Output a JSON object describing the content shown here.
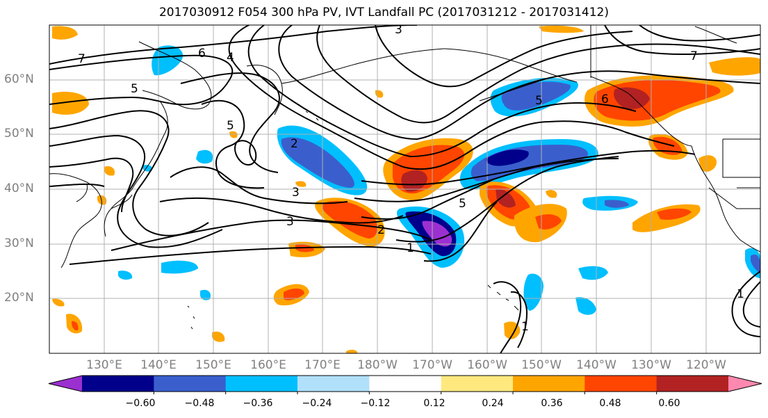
{
  "title": "2017030912 F054 300 hPa PV, IVT Landfall PC (2017031212 - 2017031412)",
  "lat_labels": [
    "60°N",
    "50°N",
    "40°N",
    "30°N",
    "20°N"
  ],
  "lon_labels": [
    "130°E",
    "140°E",
    "150°E",
    "160°E",
    "170°E",
    "180°W",
    "170°W",
    "160°W",
    "150°W",
    "140°W",
    "130°W",
    "120°W"
  ],
  "colorbar": {
    "tick_labels": [
      "−0.60",
      "−0.48",
      "−0.36",
      "−0.24",
      "−0.12",
      "0.12",
      "0.24",
      "0.36",
      "0.48",
      "0.60"
    ],
    "colors": [
      "#9b30d0",
      "#00008b",
      "#3a5fcd",
      "#00bfff",
      "#b0e0fa",
      "#ffffff",
      "#ffe97f",
      "#ffa500",
      "#ff4500",
      "#b22222",
      "#ff88b0"
    ]
  },
  "contour_labels": [
    "7",
    "6",
    "5",
    "4",
    "3",
    "3",
    "3",
    "2",
    "2",
    "1",
    "1",
    "5",
    "6",
    "5",
    "5",
    "7",
    "1"
  ],
  "chart_data": {
    "type": "map",
    "map_extent": {
      "lon_min": 120,
      "lon_max": 250,
      "lat_min": 10,
      "lat_max": 70
    },
    "grid": true,
    "contours": "300 hPa PV (PVU), labeled 1-7",
    "shading": "IVT landfall principal component, levels -0.60 to 0.60"
  }
}
